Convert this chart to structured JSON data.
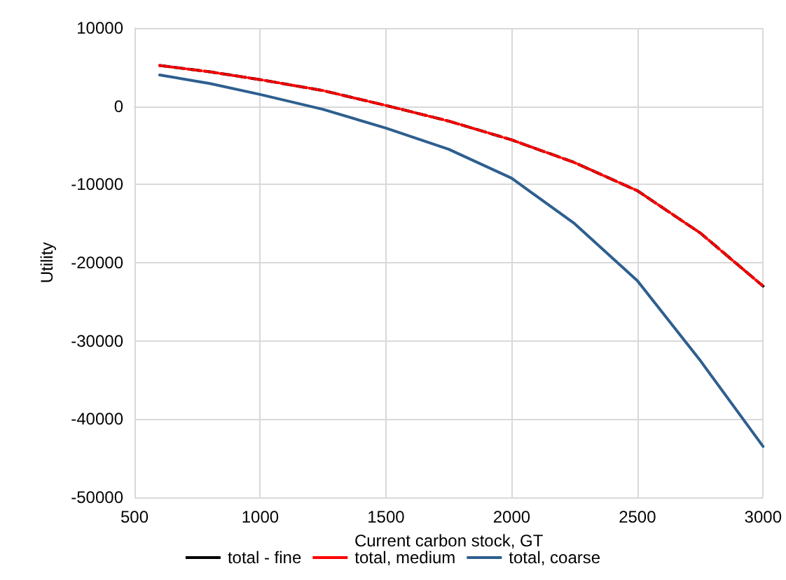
{
  "chart_data": {
    "type": "line",
    "xlabel": "Current carbon stock, GT",
    "ylabel": "Utility",
    "xlim": [
      500,
      3000
    ],
    "xticks": [
      500,
      1000,
      1500,
      2000,
      2500,
      3000
    ],
    "ylim": [
      -50000,
      10000
    ],
    "yticks": [
      -50000,
      -40000,
      -30000,
      -20000,
      -10000,
      0,
      10000
    ],
    "grid": true,
    "legend": "bottom",
    "marker": "none",
    "x": [
      600,
      800,
      1000,
      1250,
      1500,
      1750,
      2000,
      2250,
      2500,
      2750,
      3000
    ],
    "series": [
      {
        "name": "total - fine",
        "color": "#000000",
        "line_style": "dashed",
        "values": [
          5200,
          4400,
          3400,
          2000,
          100,
          -1900,
          -4300,
          -7200,
          -10800,
          -16200,
          -23000
        ]
      },
      {
        "name": "total, medium",
        "color": "#ff0000",
        "line_style": "dotted",
        "values": [
          5200,
          4400,
          3400,
          2000,
          100,
          -1900,
          -4300,
          -7200,
          -10800,
          -16200,
          -23000
        ]
      },
      {
        "name": "total, coarse",
        "color": "#2e5f8f",
        "line_style": "solid",
        "values": [
          4000,
          2900,
          1500,
          -400,
          -2800,
          -5500,
          -9200,
          -15000,
          -22300,
          -32500,
          -43500
        ]
      }
    ]
  }
}
